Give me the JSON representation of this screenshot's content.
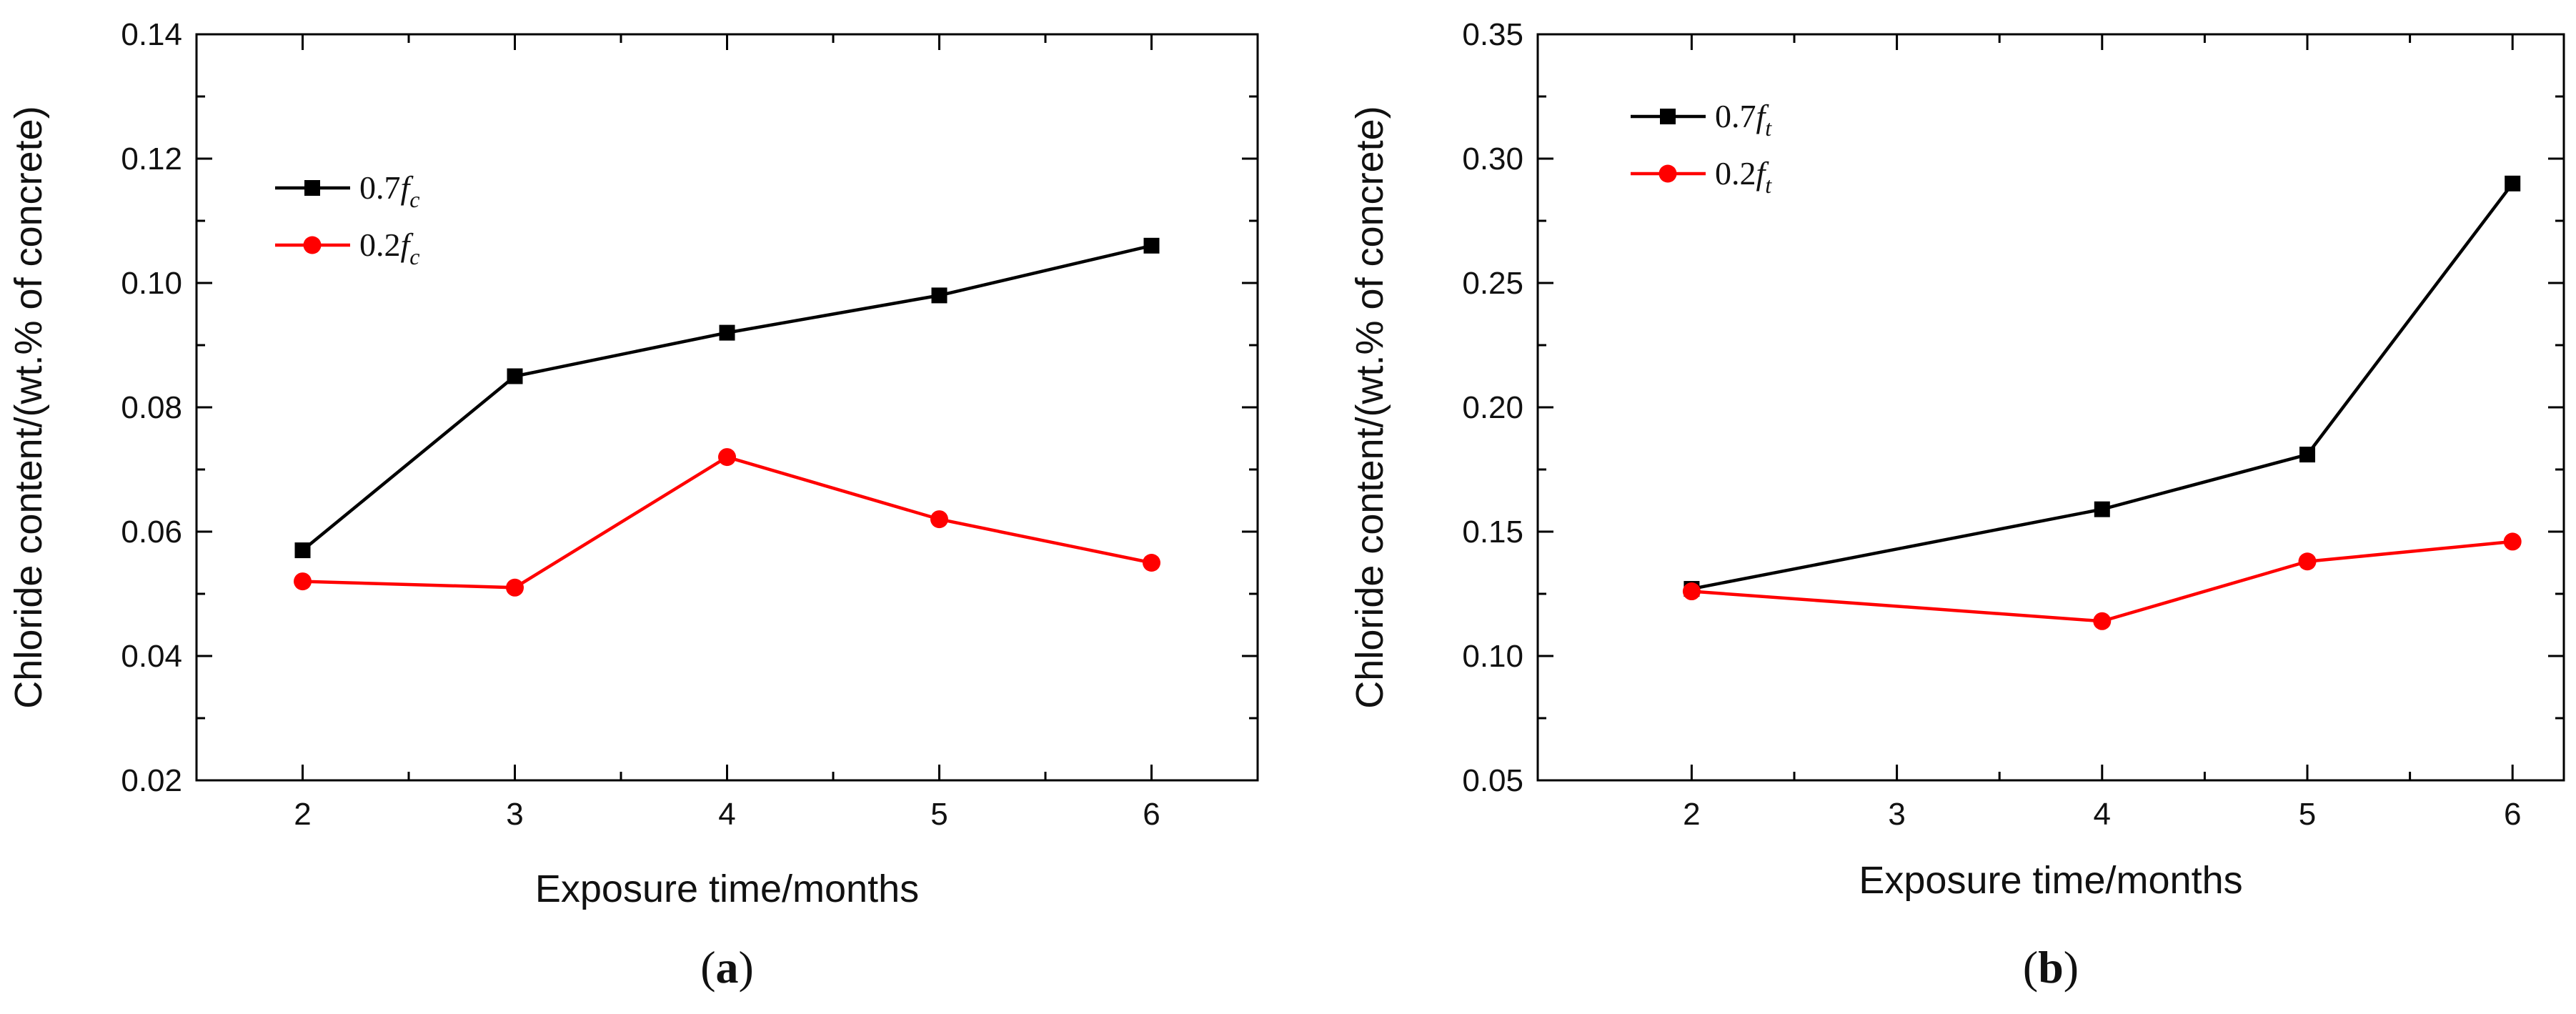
{
  "chart_data": [
    {
      "type": "line",
      "panel_label": "a",
      "xlabel": "Exposure time/months",
      "ylabel": "Chloride content/(wt.% of concrete)",
      "xlim": [
        1.5,
        6.5
      ],
      "ylim": [
        0.02,
        0.14
      ],
      "x_ticks": [
        2,
        3,
        4,
        5,
        6
      ],
      "x_tick_labels": [
        "2",
        "3",
        "4",
        "5",
        "6"
      ],
      "y_ticks": [
        0.02,
        0.04,
        0.06,
        0.08,
        0.1,
        0.12,
        0.14
      ],
      "y_tick_labels": [
        "0.02",
        "0.04",
        "0.06",
        "0.08",
        "0.10",
        "0.12",
        "0.14"
      ],
      "legend_position": "upper-left",
      "x": [
        2,
        3,
        4,
        5,
        6
      ],
      "series": [
        {
          "name_main": "0.7",
          "name_var": "f",
          "name_sub": "c",
          "marker": "square",
          "color": "#000000",
          "values": [
            0.057,
            0.085,
            0.092,
            0.098,
            0.106
          ]
        },
        {
          "name_main": "0.2",
          "name_var": "f",
          "name_sub": "c",
          "marker": "circle",
          "color": "#ff0000",
          "values": [
            0.052,
            0.051,
            0.072,
            0.062,
            0.055
          ]
        }
      ]
    },
    {
      "type": "line",
      "panel_label": "b",
      "xlabel": "Exposure time/months",
      "ylabel": "Chloride content/(wt.% of concrete)",
      "xlim": [
        1.25,
        6.25
      ],
      "ylim": [
        0.05,
        0.35
      ],
      "x_ticks": [
        2,
        3,
        4,
        5,
        6
      ],
      "x_tick_labels": [
        "2",
        "3",
        "4",
        "5",
        "6"
      ],
      "y_ticks": [
        0.05,
        0.1,
        0.15,
        0.2,
        0.25,
        0.3,
        0.35
      ],
      "y_tick_labels": [
        "0.05",
        "0.10",
        "0.15",
        "0.20",
        "0.25",
        "0.30",
        "0.35"
      ],
      "legend_position": "upper-left",
      "x": [
        2,
        4,
        5,
        6
      ],
      "series": [
        {
          "name_main": "0.7",
          "name_var": "f",
          "name_sub": "t",
          "marker": "square",
          "color": "#000000",
          "values": [
            0.127,
            0.159,
            0.181,
            0.29
          ]
        },
        {
          "name_main": "0.2",
          "name_var": "f",
          "name_sub": "t",
          "marker": "circle",
          "color": "#ff0000",
          "values": [
            0.126,
            0.114,
            0.138,
            0.146
          ]
        }
      ]
    }
  ]
}
